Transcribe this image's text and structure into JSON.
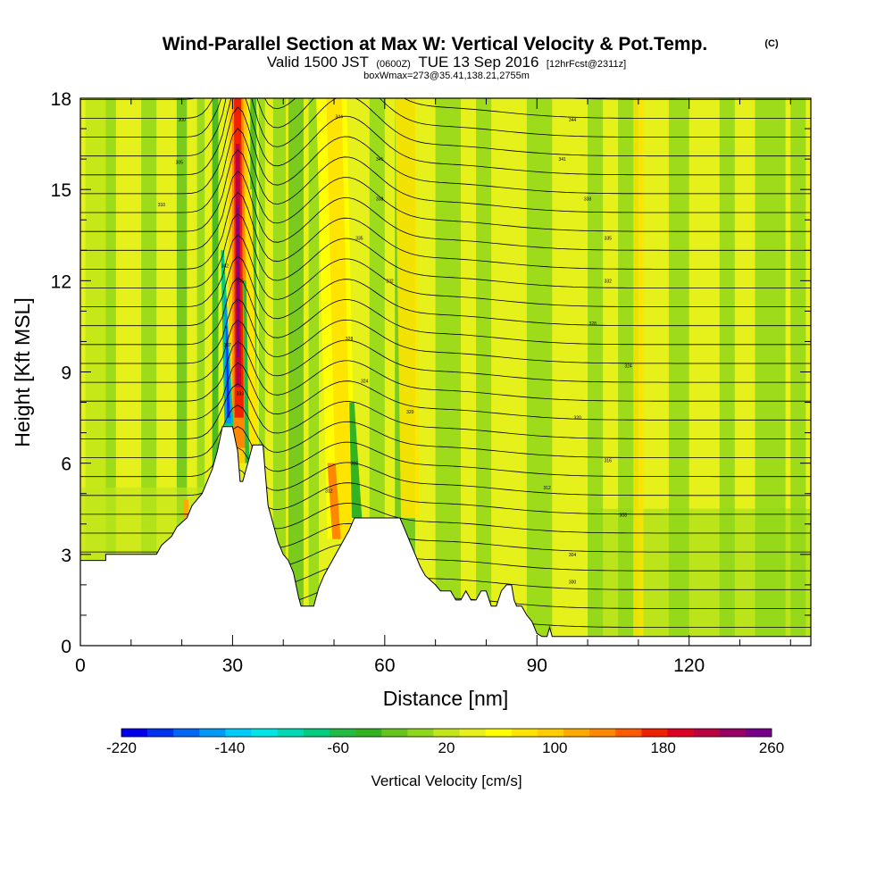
{
  "title": {
    "main": "Wind-Parallel Section at Max W: Vertical Velocity & Pot.Temp.",
    "copyright": "(C)",
    "valid_prefix": "Valid 1500 JST",
    "valid_utc": "(0600Z)",
    "valid_date": "TUE 13 Sep 2016",
    "forecast": "[12hrFcst@2311z]",
    "box_info": "boxWmax=273@35.41,138.21,2755m"
  },
  "chart_data": {
    "type": "heatmap",
    "title": "Wind-Parallel Section at Max W: Vertical Velocity & Pot.Temp.",
    "xlabel": "Distance [nm]",
    "ylabel": "Height [Kft MSL]",
    "xlim": [
      0,
      144
    ],
    "ylim": [
      0,
      18
    ],
    "x_ticks": [
      "0",
      "30",
      "60",
      "90",
      "120"
    ],
    "y_ticks": [
      "0",
      "3",
      "6",
      "9",
      "12",
      "15",
      "18"
    ],
    "colorbar": {
      "title": "Vertical Velocity [cm/s]",
      "labels": [
        "-220",
        "-140",
        "-60",
        "20",
        "100",
        "180",
        "260"
      ],
      "min": -220,
      "max": 260,
      "step": 20,
      "colors": [
        "#0000ee",
        "#0033f0",
        "#0066f5",
        "#0099f8",
        "#00ccfa",
        "#00e5e5",
        "#00d9b3",
        "#00cc80",
        "#22bb44",
        "#33b322",
        "#66c41e",
        "#8fd71c",
        "#c0e61a",
        "#e6f01a",
        "#ffff00",
        "#ffe400",
        "#ffcc00",
        "#ffaa00",
        "#ff8800",
        "#ff5a00",
        "#ee2200",
        "#dd0022",
        "#bb0044",
        "#990066",
        "#770088"
      ]
    },
    "terrain_kft": [
      [
        0,
        2.8
      ],
      [
        5,
        2.8
      ],
      [
        5,
        3.0
      ],
      [
        15,
        3.0
      ],
      [
        16,
        3.3
      ],
      [
        18,
        3.6
      ],
      [
        19,
        3.9
      ],
      [
        21,
        4.2
      ],
      [
        22,
        4.6
      ],
      [
        24,
        5.0
      ],
      [
        25,
        5.4
      ],
      [
        26,
        5.8
      ],
      [
        27,
        6.4
      ],
      [
        28,
        7.2
      ],
      [
        30,
        7.2
      ],
      [
        31,
        6.4
      ],
      [
        31.5,
        5.4
      ],
      [
        32,
        5.4
      ],
      [
        33,
        6.0
      ],
      [
        34,
        6.6
      ],
      [
        36,
        6.6
      ],
      [
        36.5,
        5.6
      ],
      [
        37,
        4.6
      ],
      [
        38,
        4.0
      ],
      [
        39,
        3.4
      ],
      [
        40,
        3.0
      ],
      [
        41,
        2.8
      ],
      [
        42,
        2.4
      ],
      [
        43,
        1.6
      ],
      [
        43.5,
        1.3
      ],
      [
        46,
        1.3
      ],
      [
        46.5,
        1.6
      ],
      [
        47,
        1.9
      ],
      [
        48,
        2.3
      ],
      [
        49,
        2.6
      ],
      [
        50,
        2.9
      ],
      [
        51,
        3.2
      ],
      [
        52,
        3.5
      ],
      [
        53,
        3.8
      ],
      [
        54,
        4.2
      ],
      [
        63,
        4.2
      ],
      [
        64,
        3.8
      ],
      [
        65,
        3.4
      ],
      [
        66,
        3.0
      ],
      [
        67,
        2.6
      ],
      [
        68,
        2.3
      ],
      [
        70,
        2.0
      ],
      [
        71,
        1.8
      ],
      [
        73,
        1.8
      ],
      [
        74,
        1.5
      ],
      [
        75,
        1.5
      ],
      [
        76,
        1.8
      ],
      [
        77,
        1.5
      ],
      [
        78,
        1.5
      ],
      [
        79,
        1.8
      ],
      [
        80,
        1.8
      ],
      [
        81,
        1.3
      ],
      [
        82,
        1.3
      ],
      [
        83,
        1.8
      ],
      [
        84,
        2.0
      ],
      [
        85,
        2.0
      ],
      [
        85.5,
        1.5
      ],
      [
        86,
        1.3
      ],
      [
        87,
        1.3
      ],
      [
        88,
        1.0
      ],
      [
        89,
        0.8
      ],
      [
        89.5,
        0.6
      ],
      [
        90,
        0.4
      ],
      [
        91,
        0.3
      ],
      [
        92,
        0.3
      ],
      [
        92.5,
        0.6
      ],
      [
        93,
        0.3
      ],
      [
        144,
        0.3
      ]
    ],
    "contour_labels": [
      {
        "x": 20,
        "y": 17.3,
        "text": "300"
      },
      {
        "x": 19.5,
        "y": 15.9,
        "text": "305"
      },
      {
        "x": 16,
        "y": 14.5,
        "text": "310"
      },
      {
        "x": 28.5,
        "y": 12.5,
        "text": "342"
      },
      {
        "x": 31.5,
        "y": 12.0,
        "text": "345"
      },
      {
        "x": 29,
        "y": 9.9,
        "text": "337"
      },
      {
        "x": 31.5,
        "y": 8.3,
        "text": "333"
      },
      {
        "x": 51,
        "y": 17.4,
        "text": "344"
      },
      {
        "x": 59,
        "y": 16.0,
        "text": "341"
      },
      {
        "x": 59,
        "y": 14.7,
        "text": "338"
      },
      {
        "x": 55,
        "y": 13.4,
        "text": "335"
      },
      {
        "x": 61,
        "y": 12.0,
        "text": "332"
      },
      {
        "x": 53,
        "y": 10.1,
        "text": "328"
      },
      {
        "x": 56,
        "y": 8.7,
        "text": "324"
      },
      {
        "x": 65,
        "y": 7.7,
        "text": "320"
      },
      {
        "x": 54,
        "y": 6.0,
        "text": "316"
      },
      {
        "x": 49,
        "y": 5.1,
        "text": "312"
      },
      {
        "x": 97,
        "y": 17.3,
        "text": "344"
      },
      {
        "x": 95,
        "y": 16.0,
        "text": "341"
      },
      {
        "x": 100,
        "y": 14.7,
        "text": "338"
      },
      {
        "x": 104,
        "y": 13.4,
        "text": "335"
      },
      {
        "x": 104,
        "y": 12.0,
        "text": "332"
      },
      {
        "x": 101,
        "y": 10.6,
        "text": "328"
      },
      {
        "x": 108,
        "y": 9.2,
        "text": "324"
      },
      {
        "x": 98,
        "y": 7.5,
        "text": "320"
      },
      {
        "x": 104,
        "y": 6.1,
        "text": "316"
      },
      {
        "x": 92,
        "y": 5.2,
        "text": "312"
      },
      {
        "x": 107,
        "y": 4.3,
        "text": "308"
      },
      {
        "x": 97,
        "y": 3.0,
        "text": "304"
      },
      {
        "x": 97,
        "y": 2.1,
        "text": "300"
      }
    ]
  }
}
